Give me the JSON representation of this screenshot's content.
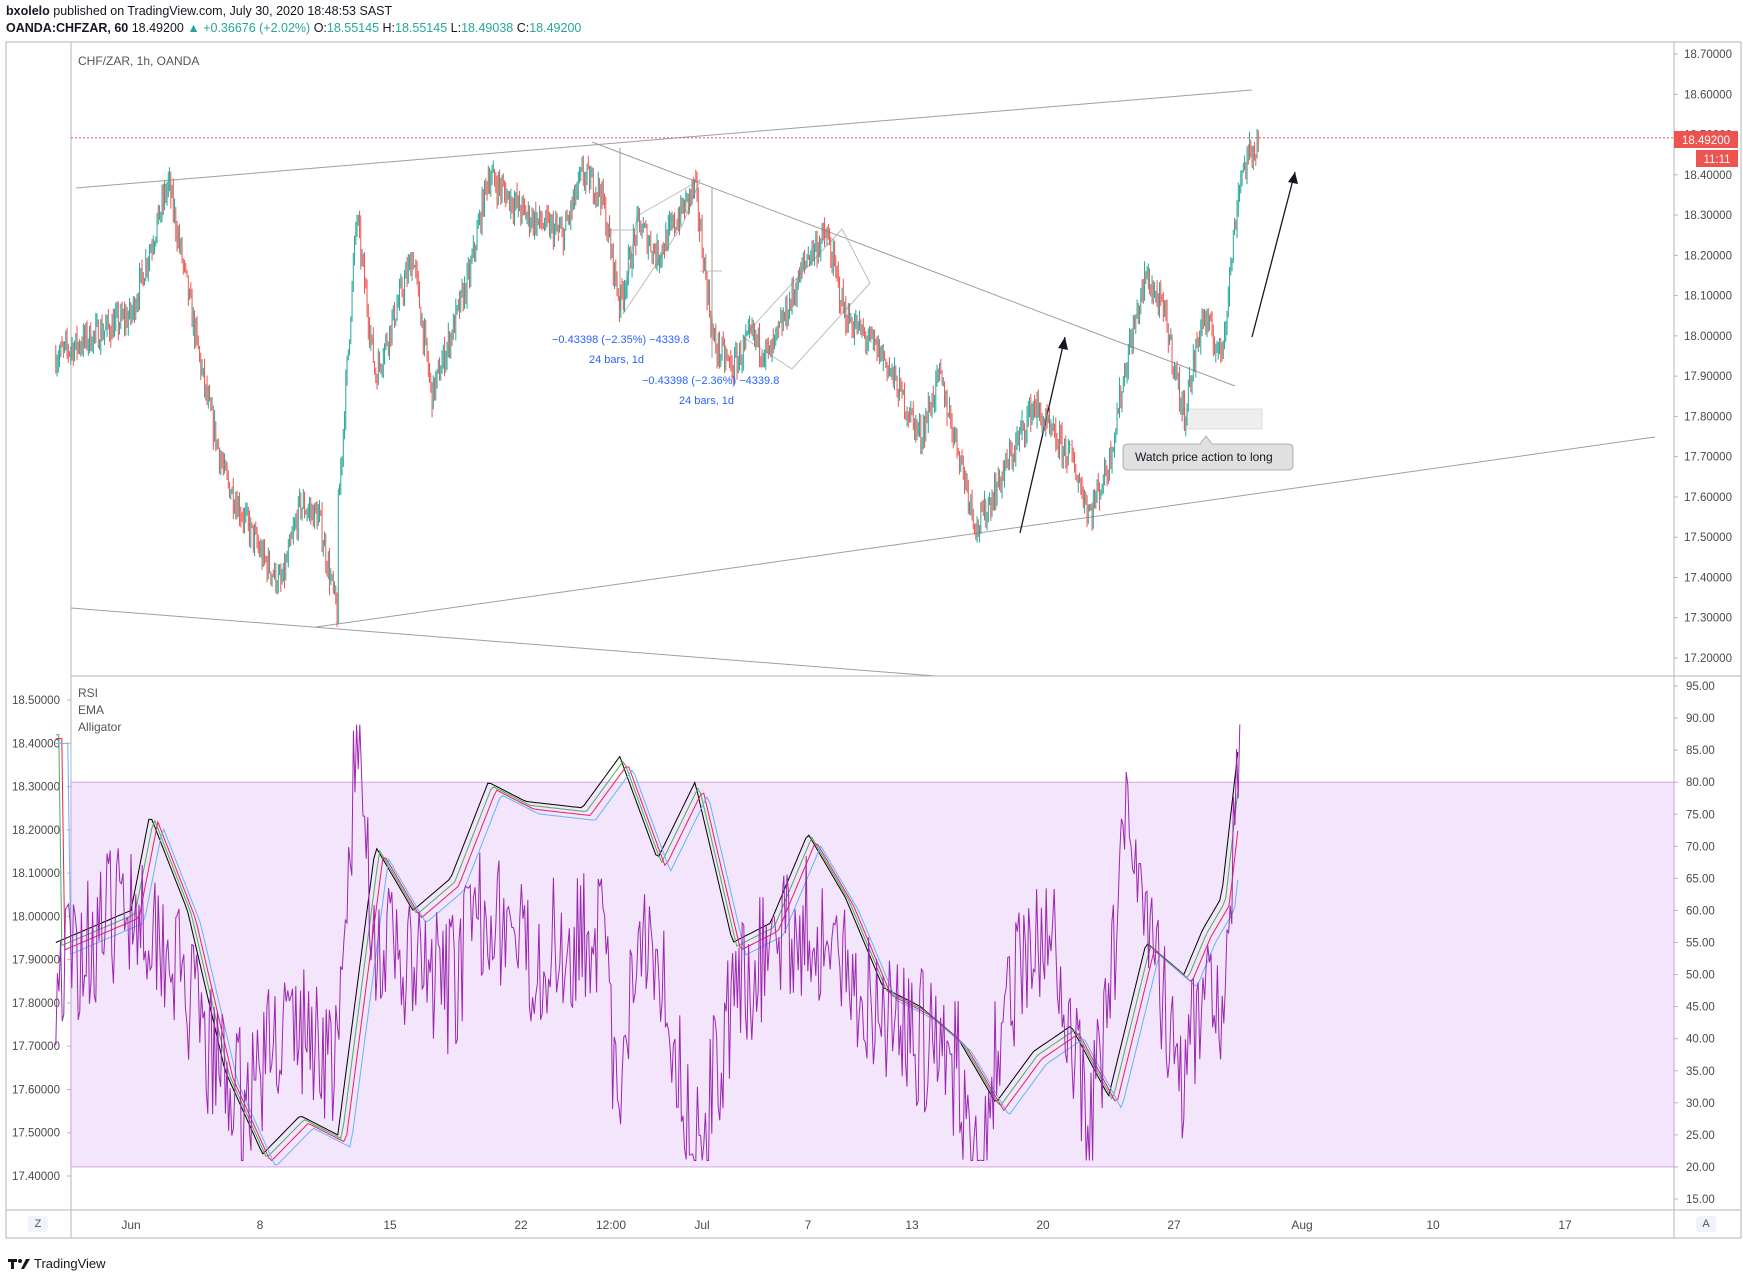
{
  "header": {
    "user": "bxolelo",
    "published_text": "published on TradingView.com, July 30, 2020 18:48:53 SAST",
    "symbol": "OANDA:CHFZAR, 60",
    "last": "18.49200",
    "change": "▲ +0.36676 (+2.02%)",
    "o_label": "O:",
    "o": "18.55145",
    "h_label": "H:",
    "h": "18.55145",
    "l_label": "L:",
    "l": "18.49038",
    "c_label": "C:",
    "c": "18.49200"
  },
  "colors": {
    "up": "#26a69a",
    "down": "#ef5350",
    "band": "#f3e5fc",
    "rsi": "#9c27b0",
    "annotation": "#2962ff"
  },
  "main_pane": {
    "title": "CHF/ZAR, 1h, OANDA",
    "price_label": "18.49200",
    "countdown_label": "11:11",
    "measure1_line1": "−0.43398 (−2.35%) −4339.8",
    "measure1_line2": "24 bars, 1d",
    "measure2_line1": "−0.43398 (−2.36%) −4339.8",
    "measure2_line2": "24 bars, 1d",
    "callout": "Watch price action to long"
  },
  "indicator_pane": {
    "legend": [
      "RSI",
      "EMA",
      "Alligator"
    ]
  },
  "footer": {
    "brand": "TradingView",
    "left_button": "Z",
    "right_button": "A"
  },
  "chart_data": [
    {
      "type": "candlestick",
      "title": "CHF/ZAR, 1h, OANDA",
      "ylim": [
        17.15,
        18.75
      ],
      "y_ticks": [
        "18.70000",
        "18.60000",
        "18.50000",
        "18.40000",
        "18.30000",
        "18.20000",
        "18.10000",
        "18.00000",
        "17.90000",
        "17.80000",
        "17.70000",
        "17.60000",
        "17.50000",
        "17.40000",
        "17.30000",
        "17.20000"
      ],
      "x_ticks": [
        "Jun",
        "8",
        "15",
        "22",
        "12:00",
        "Jul",
        "7",
        "13",
        "20",
        "27",
        "Aug",
        "10",
        "17"
      ],
      "last_price": 18.492,
      "price_path": [
        [
          "May 28",
          17.95
        ],
        [
          "Jun 1",
          18.05
        ],
        [
          "Jun 3",
          18.38
        ],
        [
          "Jun 5",
          17.85
        ],
        [
          "Jun 6",
          17.65
        ],
        [
          "Jun 8",
          17.45
        ],
        [
          "Jun 9",
          17.38
        ],
        [
          "Jun 10",
          17.58
        ],
        [
          "Jun 11",
          17.55
        ],
        [
          "Jun 12",
          17.3
        ],
        [
          "Jun 12",
          17.55
        ],
        [
          "Jun 13",
          18.3
        ],
        [
          "Jun 14",
          17.9
        ],
        [
          "Jun 16",
          18.2
        ],
        [
          "Jun 17",
          17.85
        ],
        [
          "Jun 19",
          18.15
        ],
        [
          "Jun 20",
          18.4
        ],
        [
          "Jun 22",
          18.3
        ],
        [
          "Jun 24",
          18.25
        ],
        [
          "Jun 25",
          18.4
        ],
        [
          "Jun 26",
          18.36
        ],
        [
          "Jun 27",
          18.08
        ],
        [
          "Jun 28",
          18.28
        ],
        [
          "Jun 29",
          18.2
        ],
        [
          "Jul 1",
          18.37
        ],
        [
          "Jul 2",
          17.98
        ],
        [
          "Jul 3",
          17.92
        ],
        [
          "Jul 4",
          18.0
        ],
        [
          "Jul 5",
          17.95
        ],
        [
          "Jul 7",
          18.2
        ],
        [
          "Jul 8",
          18.25
        ],
        [
          "Jul 9",
          18.05
        ],
        [
          "Jul 11",
          17.95
        ],
        [
          "Jul 12",
          17.85
        ],
        [
          "Jul 13",
          17.75
        ],
        [
          "Jul 14",
          17.9
        ],
        [
          "Jul 15",
          17.72
        ],
        [
          "Jul 16",
          17.52
        ],
        [
          "Jul 17",
          17.62
        ],
        [
          "Jul 18",
          17.72
        ],
        [
          "Jul 19",
          17.83
        ],
        [
          "Jul 20",
          17.75
        ],
        [
          "Jul 21",
          17.7
        ],
        [
          "Jul 22",
          17.56
        ],
        [
          "Jul 23",
          17.68
        ],
        [
          "Jul 24",
          17.95
        ],
        [
          "Jul 25",
          18.15
        ],
        [
          "Jul 26",
          18.05
        ],
        [
          "Jul 27",
          17.8
        ],
        [
          "Jul 28",
          18.05
        ],
        [
          "Jul 29",
          17.95
        ],
        [
          "Jul 30",
          18.4
        ],
        [
          "Jul 31",
          18.49
        ]
      ],
      "annotations": [
        {
          "type": "measure",
          "text": "−0.43398 (−2.35%) −4339.8",
          "text2": "24 bars, 1d"
        },
        {
          "type": "measure",
          "text": "−0.43398 (−2.36%) −4339.8",
          "text2": "24 bars, 1d"
        },
        {
          "type": "callout",
          "text": "Watch price action to long"
        }
      ]
    },
    {
      "type": "line",
      "legend": [
        "RSI",
        "EMA",
        "Alligator"
      ],
      "ylim": [
        12,
        97
      ],
      "y_ticks": [
        "95.00",
        "90.00",
        "85.00",
        "80.00",
        "75.00",
        "70.00",
        "65.00",
        "60.00",
        "55.00",
        "50.00",
        "45.00",
        "40.00",
        "35.00",
        "30.00",
        "25.00",
        "20.00",
        "15.00"
      ],
      "left_axis_ticks": [
        "18.50000",
        "18.40000",
        "18.30000",
        "18.20000",
        "18.10000",
        "18.00000",
        "17.90000",
        "17.80000",
        "17.70000",
        "17.60000",
        "17.50000",
        "17.40000"
      ],
      "band": [
        20,
        80
      ],
      "alligator_path": [
        [
          "May 28",
          55
        ],
        [
          "Jun 1",
          60
        ],
        [
          "Jun 2",
          75
        ],
        [
          "Jun 4",
          60
        ],
        [
          "Jun 6",
          35
        ],
        [
          "Jun 8",
          22
        ],
        [
          "Jun 10",
          28
        ],
        [
          "Jun 12",
          25
        ],
        [
          "Jun 14",
          70
        ],
        [
          "Jun 16",
          60
        ],
        [
          "Jun 18",
          65
        ],
        [
          "Jun 20",
          80
        ],
        [
          "Jun 22",
          77
        ],
        [
          "Jun 25",
          76
        ],
        [
          "Jun 27",
          84
        ],
        [
          "Jun 29",
          68
        ],
        [
          "Jul 1",
          80
        ],
        [
          "Jul 3",
          55
        ],
        [
          "Jul 5",
          58
        ],
        [
          "Jul 7",
          72
        ],
        [
          "Jul 9",
          62
        ],
        [
          "Jul 11",
          48
        ],
        [
          "Jul 13",
          45
        ],
        [
          "Jul 15",
          40
        ],
        [
          "Jul 17",
          30
        ],
        [
          "Jul 19",
          38
        ],
        [
          "Jul 21",
          42
        ],
        [
          "Jul 23",
          31
        ],
        [
          "Jul 25",
          55
        ],
        [
          "Jul 27",
          50
        ],
        [
          "Jul 28",
          57
        ],
        [
          "Jul 29",
          62
        ],
        [
          "Jul 30",
          88
        ]
      ],
      "rsi_path": [
        [
          "May 28",
          50
        ],
        [
          "Jun 1",
          62
        ],
        [
          "Jun 3",
          55
        ],
        [
          "Jun 5",
          38
        ],
        [
          "Jun 7",
          30
        ],
        [
          "Jun 9",
          42
        ],
        [
          "Jun 11",
          40
        ],
        [
          "Jun 12",
          35
        ],
        [
          "Jun 13",
          88
        ],
        [
          "Jun 14",
          55
        ],
        [
          "Jun 16",
          50
        ],
        [
          "Jun 18",
          48
        ],
        [
          "Jun 20",
          62
        ],
        [
          "Jun 22",
          52
        ],
        [
          "Jun 24",
          55
        ],
        [
          "Jun 26",
          58
        ],
        [
          "Jun 27",
          25
        ],
        [
          "Jun 28",
          60
        ],
        [
          "Jun 29",
          55
        ],
        [
          "Jul 1",
          22
        ],
        [
          "Jul 3",
          45
        ],
        [
          "Jul 5",
          55
        ],
        [
          "Jul 7",
          58
        ],
        [
          "Jul 9",
          50
        ],
        [
          "Jul 11",
          45
        ],
        [
          "Jul 13",
          40
        ],
        [
          "Jul 15",
          35
        ],
        [
          "Jul 16",
          22
        ],
        [
          "Jul 18",
          50
        ],
        [
          "Jul 20",
          55
        ],
        [
          "Jul 22",
          25
        ],
        [
          "Jul 23",
          45
        ],
        [
          "Jul 24",
          80
        ],
        [
          "Jul 25",
          60
        ],
        [
          "Jul 27",
          30
        ],
        [
          "Jul 28",
          50
        ],
        [
          "Jul 29",
          45
        ],
        [
          "Jul 30",
          85
        ]
      ]
    }
  ]
}
